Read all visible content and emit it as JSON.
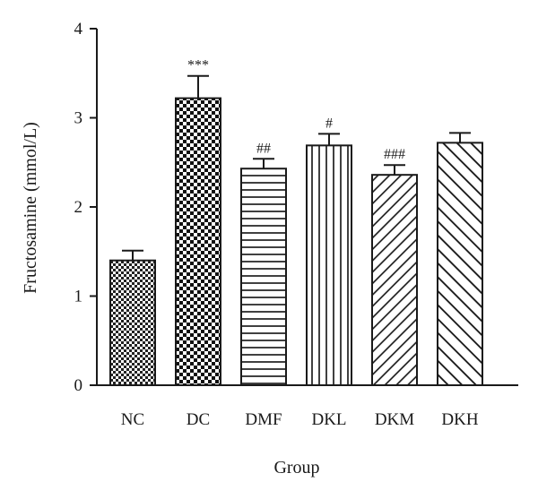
{
  "chart_data": {
    "type": "bar",
    "title": "",
    "xlabel": "Group",
    "ylabel": "Fructosamine (mmol/L)",
    "ylim": [
      0,
      4
    ],
    "yticks": [
      0,
      1,
      2,
      3,
      4
    ],
    "grid": false,
    "categories": [
      "NC",
      "DC",
      "DMF",
      "DKL",
      "DKM",
      "DKH"
    ],
    "values": [
      1.4,
      3.22,
      2.43,
      2.69,
      2.36,
      2.72
    ],
    "errors": [
      0.11,
      0.25,
      0.11,
      0.13,
      0.11,
      0.11
    ],
    "annotations": [
      "",
      "***",
      "##",
      "#",
      "###",
      ""
    ],
    "patterns": [
      "checker-small",
      "checker-large",
      "horizontal-lines",
      "vertical-lines",
      "diagonal-forward",
      "diagonal-backward"
    ]
  }
}
